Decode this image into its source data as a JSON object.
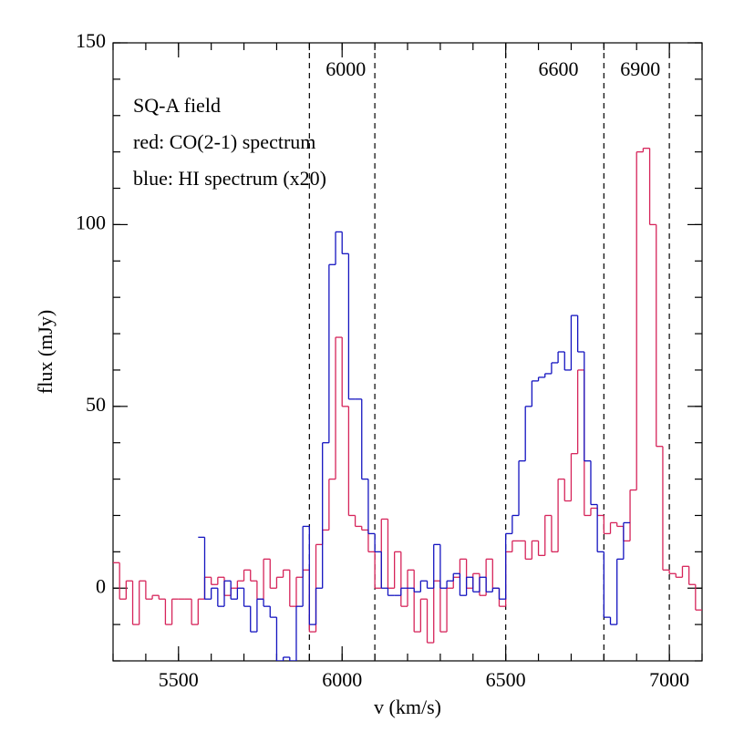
{
  "chart_data": {
    "type": "step",
    "xlabel": "v (km/s)",
    "ylabel": "flux (mJy)",
    "annotations": [
      {
        "text": "SQ-A field",
        "color": "#000000"
      },
      {
        "text": "red: CO(2-1) spectrum",
        "color": "#d6245a"
      },
      {
        "text": "blue: HI spectrum (x20)",
        "color": "#1414c0"
      }
    ],
    "regions": [
      {
        "label": "6000",
        "from": 5900,
        "to": 6100
      },
      {
        "label": "6600",
        "from": 6500,
        "to": 6800
      },
      {
        "label": "6900",
        "from": 6800,
        "to": 7000
      }
    ],
    "xlim": [
      5300,
      7100
    ],
    "xticks": [
      5500,
      6000,
      6500,
      7000
    ],
    "ylim": [
      -20,
      150
    ],
    "yticks": [
      0,
      50,
      100,
      150
    ],
    "x": [
      5310,
      5330,
      5350,
      5370,
      5390,
      5410,
      5430,
      5450,
      5470,
      5490,
      5510,
      5530,
      5550,
      5570,
      5590,
      5610,
      5630,
      5650,
      5670,
      5690,
      5710,
      5730,
      5750,
      5770,
      5790,
      5810,
      5830,
      5850,
      5870,
      5890,
      5910,
      5930,
      5950,
      5970,
      5990,
      6010,
      6030,
      6050,
      6070,
      6090,
      6110,
      6130,
      6150,
      6170,
      6190,
      6210,
      6230,
      6250,
      6270,
      6290,
      6310,
      6330,
      6350,
      6370,
      6390,
      6410,
      6430,
      6450,
      6470,
      6490,
      6510,
      6530,
      6550,
      6570,
      6590,
      6610,
      6630,
      6650,
      6670,
      6690,
      6710,
      6730,
      6750,
      6770,
      6790,
      6810,
      6830,
      6850,
      6870,
      6890,
      6910,
      6930,
      6950,
      6970,
      6990,
      7010,
      7030,
      7050,
      7070,
      7090
    ],
    "series": [
      {
        "name": "CO(2-1)",
        "color": "#d6245a",
        "values": [
          7,
          -3,
          2,
          -10,
          2,
          -3,
          -2,
          -3,
          -10,
          -3,
          -3,
          -3,
          -10,
          -3,
          3,
          1,
          3,
          -2,
          0,
          2,
          5,
          2,
          -3,
          8,
          0,
          3,
          5,
          -5,
          3,
          5,
          -12,
          12,
          16,
          30,
          69,
          50,
          20,
          17,
          16,
          10,
          0,
          19,
          0,
          10,
          -5,
          5,
          -12,
          -3,
          -15,
          2,
          -12,
          0,
          3,
          8,
          0,
          4,
          -2,
          8,
          0,
          -5,
          10,
          13,
          13,
          8,
          13,
          9,
          20,
          10,
          30,
          24,
          37,
          60,
          20,
          22,
          20,
          15,
          18,
          17,
          13,
          27,
          120,
          121,
          100,
          39,
          5,
          4,
          3,
          6,
          1,
          -6
        ]
      },
      {
        "name": "HI",
        "color": "#1414c0",
        "values": [
          null,
          null,
          null,
          null,
          null,
          null,
          null,
          null,
          null,
          null,
          null,
          null,
          null,
          14,
          -3,
          0,
          -5,
          2,
          -3,
          0,
          -5,
          -12,
          -3,
          -5,
          -8,
          -20,
          -19,
          -20,
          -5,
          17,
          -10,
          0,
          40,
          89,
          98,
          92,
          52,
          52,
          30,
          15,
          10,
          0,
          -2,
          -2,
          0,
          0,
          -1,
          2,
          0,
          12,
          0,
          2,
          4,
          -2,
          3,
          -1,
          3,
          -1,
          0,
          -3,
          15,
          20,
          35,
          50,
          57,
          58,
          59,
          62,
          65,
          60,
          75,
          65,
          35,
          23,
          10,
          -8,
          -10,
          8,
          18,
          null,
          null,
          null,
          null,
          null,
          null,
          null,
          null,
          null,
          null,
          null
        ]
      }
    ]
  }
}
